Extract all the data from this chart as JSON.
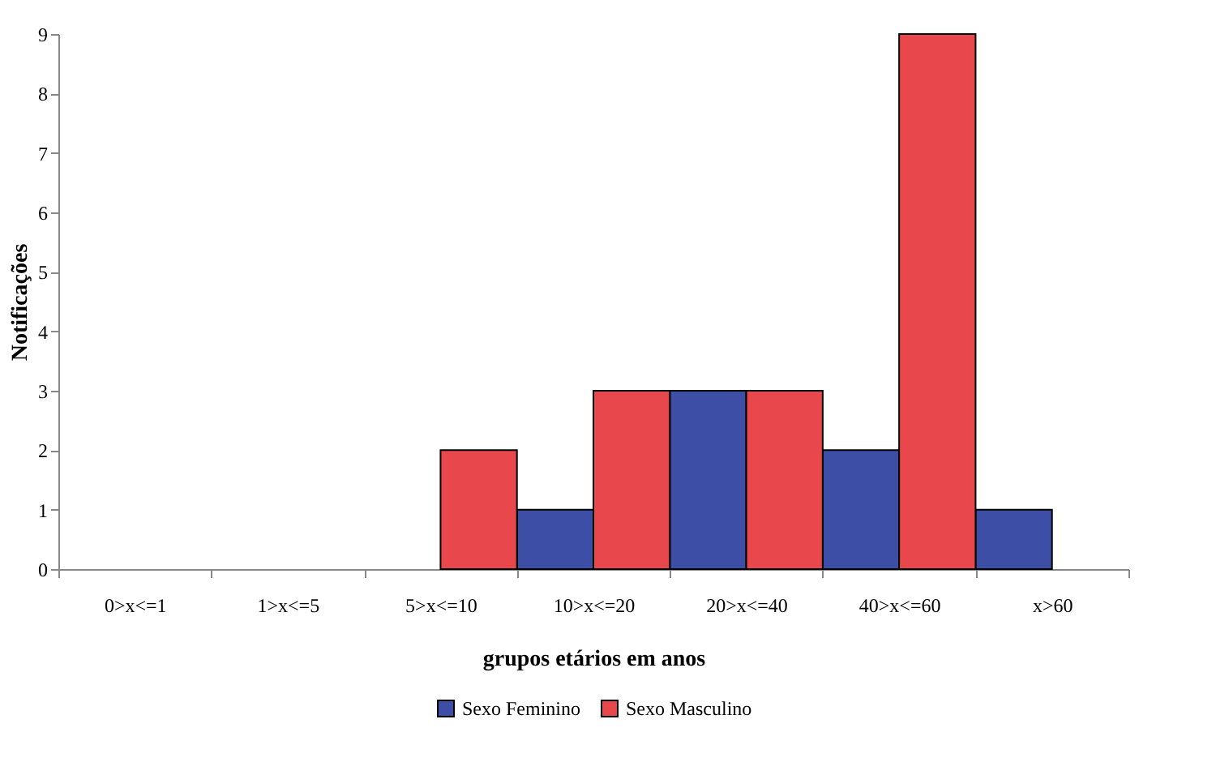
{
  "chart_data": {
    "type": "bar",
    "xlabel": "grupos etários  em  anos",
    "ylabel": "Notificações",
    "categories": [
      "0>x<=1",
      "1>x<=5",
      "5>x<=10",
      "10>x<=20",
      "20>x<=40",
      "40>x<=60",
      "x>60"
    ],
    "series": [
      {
        "name": "Sexo Feminino",
        "color": "#3d4ea6",
        "values": [
          0,
          0,
          0,
          1,
          3,
          2,
          1
        ]
      },
      {
        "name": "Sexo Masculino",
        "color": "#e8474c",
        "values": [
          0,
          0,
          2,
          3,
          3,
          9,
          0
        ]
      }
    ],
    "ylim": [
      0,
      9
    ],
    "yticks": [
      0,
      1,
      2,
      3,
      4,
      5,
      6,
      7,
      8,
      9
    ],
    "grid": false,
    "legend": "bottom"
  }
}
